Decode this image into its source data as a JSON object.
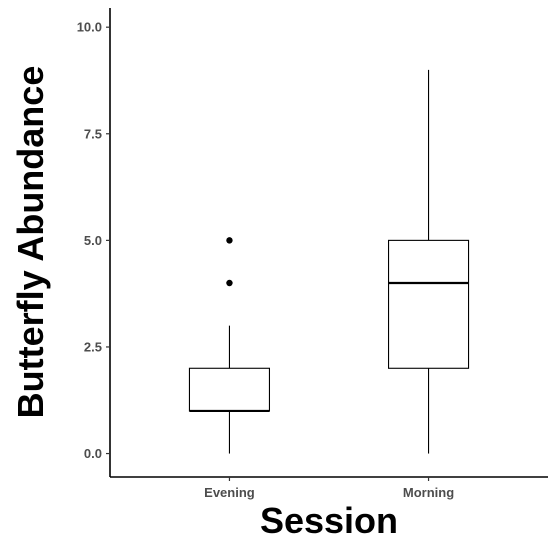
{
  "chart_data": {
    "type": "boxplot",
    "xlabel": "Session",
    "ylabel": "Butterfly Abundance",
    "ylim": [
      -0.55,
      10.45
    ],
    "yticks": [
      0.0,
      2.5,
      5.0,
      7.5,
      10.0
    ],
    "ytick_labels": [
      "0.0",
      "2.5",
      "5.0",
      "7.5",
      "10.0"
    ],
    "categories": [
      "Evening",
      "Morning"
    ],
    "grid": false,
    "legend": "none",
    "boxes": [
      {
        "category": "Evening",
        "whisker_low": 0,
        "q1": 1,
        "median": 1,
        "q3": 2,
        "whisker_high": 3,
        "outliers": [
          4,
          5
        ]
      },
      {
        "category": "Morning",
        "whisker_low": 0,
        "q1": 2,
        "median": 4,
        "q3": 5,
        "whisker_high": 9,
        "outliers": []
      }
    ]
  }
}
